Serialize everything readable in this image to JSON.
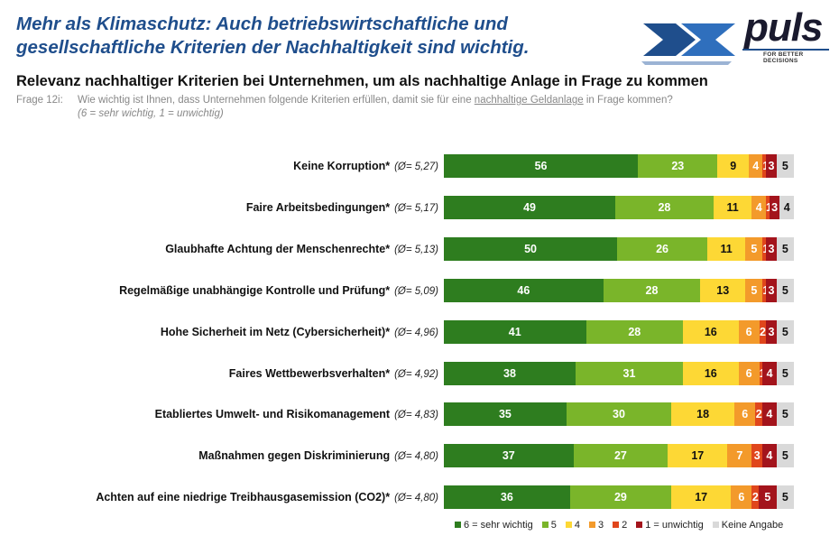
{
  "headline": "Mehr als Klimaschutz: Auch betriebswirtschaftliche und gesellschaftliche Kriterien der Nachhaltigkeit sind wichtig.",
  "logo": {
    "word": "puls",
    "tagline": "FOR BETTER DECISIONS"
  },
  "question": {
    "label": "Frage 12i:",
    "text_before": "Wie wichtig ist Ihnen, dass Unternehmen folgende Kriterien erfüllen, damit sie für eine",
    "text_link": "nachhaltige Geldanlage",
    "text_after": "in Frage kommen?",
    "scale": "(6 = sehr wichtig, 1 = unwichtig)"
  },
  "chart_data": {
    "type": "bar",
    "orientation": "horizontal-stacked-100",
    "title": "Relevanz nachhaltiger Kriterien bei Unternehmen, um als nachhaltige Anlage in Frage zu kommen",
    "legend_position": "bottom-right",
    "categories": [
      {
        "label": "Keine Korruption*",
        "avg": "(Ø= 5,27)"
      },
      {
        "label": "Faire Arbeitsbedingungen*",
        "avg": "(Ø= 5,17)"
      },
      {
        "label": "Glaubhafte Achtung der Menschenrechte*",
        "avg": "(Ø= 5,13)"
      },
      {
        "label": "Regelmäßige unabhängige Kontrolle und Prüfung*",
        "avg": "(Ø= 5,09)"
      },
      {
        "label": "Hohe Sicherheit im Netz (Cybersicherheit)*",
        "avg": "(Ø= 4,96)"
      },
      {
        "label": "Faires Wettbewerbsverhalten*",
        "avg": "(Ø= 4,92)"
      },
      {
        "label": "Etabliertes Umwelt- und Risikomanagement",
        "avg": "(Ø= 4,83)"
      },
      {
        "label": "Maßnahmen gegen Diskriminierung",
        "avg": "(Ø= 4,80)"
      },
      {
        "label": "Achten auf eine niedrige Treibhausgasemission (CO2)*",
        "avg": "(Ø= 4,80)"
      }
    ],
    "series": [
      {
        "name": "6 = sehr wichtig",
        "color": "#2e7d1f",
        "text": "light",
        "values": [
          56,
          49,
          50,
          46,
          41,
          38,
          35,
          37,
          36
        ]
      },
      {
        "name": "5",
        "color": "#7ab52a",
        "text": "light",
        "values": [
          23,
          28,
          26,
          28,
          28,
          31,
          30,
          27,
          29
        ]
      },
      {
        "name": "4",
        "color": "#fdd835",
        "text": "dark",
        "values": [
          9,
          11,
          11,
          13,
          16,
          16,
          18,
          17,
          17
        ]
      },
      {
        "name": "3",
        "color": "#f39a2b",
        "text": "light",
        "values": [
          4,
          4,
          5,
          5,
          6,
          6,
          6,
          7,
          6
        ]
      },
      {
        "name": "2",
        "color": "#e0461c",
        "text": "light",
        "values": [
          1,
          1,
          1,
          1,
          2,
          1,
          2,
          3,
          2
        ]
      },
      {
        "name": "1 = unwichtig",
        "color": "#a3141c",
        "text": "light",
        "values": [
          3,
          3,
          3,
          3,
          3,
          4,
          4,
          4,
          5
        ]
      },
      {
        "name": "Keine Angabe",
        "color": "#d9d9d9",
        "text": "dark",
        "values": [
          5,
          4,
          5,
          5,
          5,
          5,
          5,
          5,
          5
        ]
      }
    ]
  }
}
